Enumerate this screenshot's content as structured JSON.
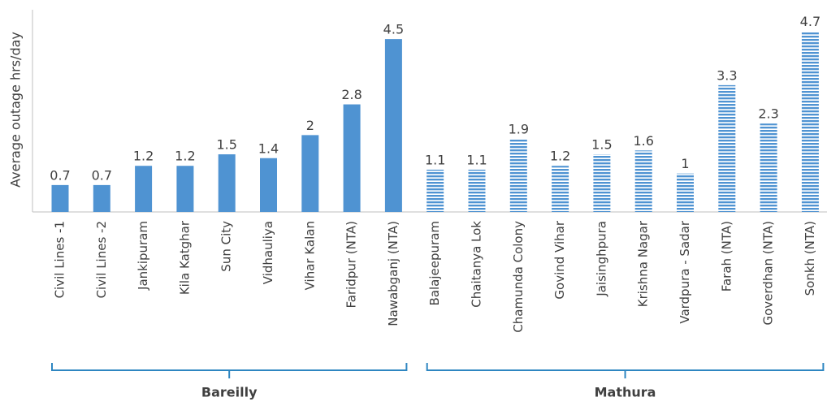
{
  "chart_data": {
    "type": "bar",
    "y_label": "Average outage hrs/day",
    "ylim": [
      0,
      5.2
    ],
    "groups": [
      {
        "name": "Bareilly",
        "color": "#4f93d2",
        "pattern": "solid",
        "categories": [
          "Civil Lines -1",
          "Civil Lines -2",
          "Jankipuram",
          "Kila Katghar",
          "Sun City",
          "Vidhauliya",
          "Vihar Kalan",
          "Faridpur (NTA)",
          "Nawabganj (NTA)"
        ],
        "values": [
          0.7,
          0.7,
          1.2,
          1.2,
          1.5,
          1.4,
          2,
          2.8,
          4.5
        ]
      },
      {
        "name": "Mathura",
        "color": "#4f93d2",
        "pattern": "striped",
        "categories": [
          "Balajeepuram",
          "Chaitanya Lok",
          "Chamunda Colony",
          "Govind Vihar",
          "Jaisinghpura",
          "Krishna Nagar",
          "Vardpura - Sadar",
          "Farah (NTA)",
          "Goverdhan (NTA)",
          "Sonkh (NTA)"
        ],
        "values": [
          1.1,
          1.1,
          1.9,
          1.2,
          1.5,
          1.6,
          1,
          3.3,
          2.3,
          4.7
        ]
      }
    ]
  }
}
